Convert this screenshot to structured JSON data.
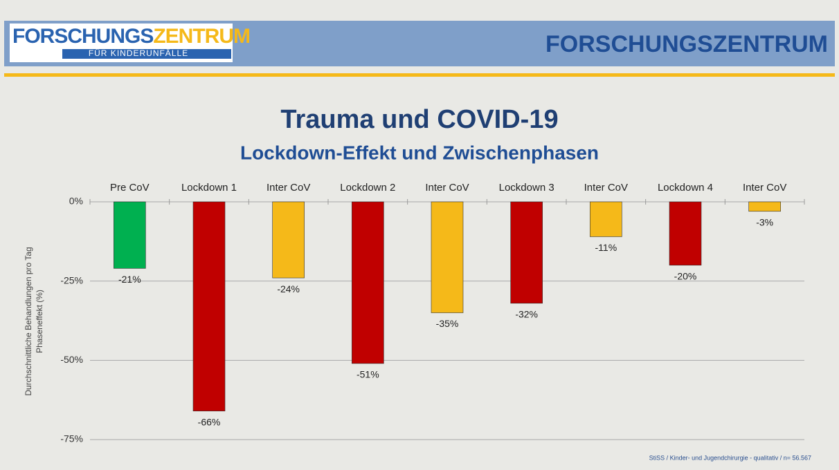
{
  "header": {
    "logo_main": "FORSCHUNGS",
    "logo_accent": "ZENTRUM",
    "logo_sub": "FÜR KINDERUNFÄLLE",
    "brand": "FORSCHUNGSZENTRUM"
  },
  "chart_data": {
    "type": "bar",
    "title": "Trauma und COVID-19",
    "subtitle": "Lockdown-Effekt und Zwischenphasen",
    "y_label": [
      "Durchschnittliche Behandlungen pro Tag",
      "Phaseneffekt (%)"
    ],
    "categories": [
      "Pre CoV",
      "Lockdown 1",
      "Inter CoV",
      "Lockdown 2",
      "Inter CoV",
      "Lockdown 3",
      "Inter CoV",
      "Lockdown 4",
      "Inter CoV"
    ],
    "values": [
      -21,
      -66,
      -24,
      -51,
      -35,
      -32,
      -11,
      -20,
      -3
    ],
    "value_labels": [
      "-21%",
      "-66%",
      "-24%",
      "-51%",
      "-35%",
      "-32%",
      "-11%",
      "-20%",
      "-3%"
    ],
    "colors": [
      "#00b050",
      "#c00000",
      "#f5b919",
      "#c00000",
      "#f5b919",
      "#c00000",
      "#f5b919",
      "#c00000",
      "#f5b919"
    ],
    "ylim": [
      -75,
      0
    ],
    "yticks": [
      {
        "value": 0,
        "label": "0%"
      },
      {
        "value": -25,
        "label": "-25%"
      },
      {
        "value": -50,
        "label": "-50%"
      },
      {
        "value": -75,
        "label": "-75%"
      }
    ],
    "grid": true,
    "footnote": "StiSS / Kinder- und Jugendchirurgie - qualitativ / n= 56.567"
  }
}
